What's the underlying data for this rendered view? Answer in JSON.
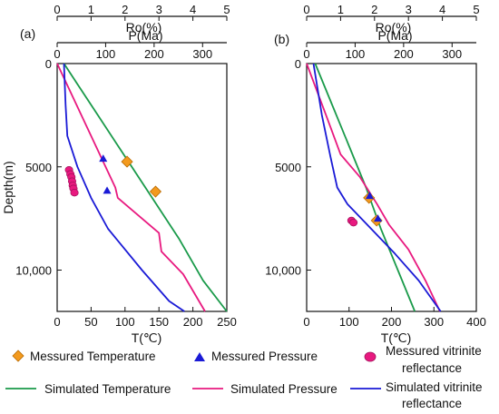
{
  "colors": {
    "temperature": "#1a9a4a",
    "pressure": "#e8197f",
    "vitrinite": "#1a1ad6",
    "meas_temp_fill": "#f39a1e",
    "meas_temp_stroke": "#b96a00",
    "meas_pressure": "#1a1ad6",
    "meas_vitrinite_fill": "#e8197f",
    "meas_vitrinite_stroke": "#a0105a"
  },
  "axes_labels": {
    "ro": "Ro(%)",
    "p": "P(Ma)",
    "t": "T(℃)",
    "depth": "Depth(m)"
  },
  "legend": {
    "measured_temperature": "Messured Temperature",
    "measured_pressure": "Messured Pressure",
    "measured_vitrinite_1": "Messured vitrinite",
    "measured_vitrinite_2": "reflectance",
    "simulated_temperature": "Simulated Temperature",
    "simulated_pressure": "Simulated Pressure",
    "simulated_vitrinite_1": "Simulated vitrinite",
    "simulated_vitrinite_2": "reflectance"
  },
  "chart_data": [
    {
      "type": "line",
      "panel": "(a)",
      "ylabel": "Depth(m)",
      "ylim": [
        0,
        12000
      ],
      "y_ticks": [
        0,
        5000,
        10000
      ],
      "y_tick_labels": [
        "0",
        "5000",
        "10,000"
      ],
      "axes": {
        "T": {
          "label": "T(℃)",
          "range": [
            0,
            250
          ],
          "ticks": [
            0,
            50,
            100,
            150,
            200,
            250
          ]
        },
        "P": {
          "label": "P(Ma)",
          "range": [
            0,
            350
          ],
          "ticks": [
            0,
            100,
            200,
            300
          ]
        },
        "Ro": {
          "label": "Ro(%)",
          "range": [
            0,
            5
          ],
          "ticks": [
            0,
            1,
            2,
            3,
            4,
            5
          ]
        }
      },
      "series": [
        {
          "name": "Simulated Temperature",
          "axis": "T",
          "points": [
            [
              10,
              0
            ],
            [
              30,
              1000
            ],
            [
              60,
              2500
            ],
            [
              100,
              4500
            ],
            [
              140,
              6500
            ],
            [
              180,
              8500
            ],
            [
              215,
              10500
            ],
            [
              250,
              12000
            ]
          ]
        },
        {
          "name": "Simulated Pressure",
          "axis": "P",
          "points": [
            [
              0,
              0
            ],
            [
              50,
              2500
            ],
            [
              100,
              5000
            ],
            [
              120,
              6000
            ],
            [
              125,
              6500
            ],
            [
              210,
              8200
            ],
            [
              215,
              9100
            ],
            [
              260,
              10200
            ],
            [
              305,
              12000
            ]
          ]
        },
        {
          "name": "Simulated vitrinite reflectance",
          "axis": "Ro",
          "points": [
            [
              0.2,
              0
            ],
            [
              0.25,
              2000
            ],
            [
              0.3,
              3500
            ],
            [
              0.6,
              5000
            ],
            [
              1.0,
              6500
            ],
            [
              1.5,
              8000
            ],
            [
              2.5,
              10000
            ],
            [
              3.3,
              11500
            ],
            [
              3.75,
              12000
            ]
          ]
        },
        {
          "name": "Messured Temperature",
          "axis": "T",
          "points": [
            [
              103,
              4750
            ],
            [
              145,
              6200
            ]
          ]
        },
        {
          "name": "Messured Pressure",
          "axis": "P",
          "points": [
            [
              95,
              4600
            ],
            [
              103,
              6150
            ]
          ]
        },
        {
          "name": "Messured vitrinite reflectance",
          "axis": "Ro",
          "points": [
            [
              0.35,
              5150
            ],
            [
              0.39,
              5350
            ],
            [
              0.42,
              5500
            ],
            [
              0.44,
              5700
            ],
            [
              0.46,
              5900
            ],
            [
              0.48,
              6050
            ],
            [
              0.51,
              6250
            ]
          ]
        }
      ]
    },
    {
      "type": "line",
      "panel": "(b)",
      "ylim": [
        0,
        12000
      ],
      "y_ticks": [
        0,
        5000,
        10000
      ],
      "y_tick_labels": [
        "0",
        "5000",
        "10,000"
      ],
      "axes": {
        "T": {
          "label": "T(℃)",
          "range": [
            0,
            400
          ],
          "ticks": [
            0,
            100,
            200,
            300,
            400
          ]
        },
        "P": {
          "label": "P(Ma)",
          "range": [
            0,
            350
          ],
          "ticks": [
            0,
            100,
            200,
            300
          ]
        },
        "Ro": {
          "label": "Ro(%)",
          "range": [
            0,
            5
          ],
          "ticks": [
            0,
            1,
            2,
            3,
            4,
            5
          ]
        }
      },
      "series": [
        {
          "name": "Simulated Temperature",
          "axis": "T",
          "points": [
            [
              20,
              0
            ],
            [
              60,
              2000
            ],
            [
              100,
              4000
            ],
            [
              140,
              6000
            ],
            [
              175,
              8000
            ],
            [
              215,
              10000
            ],
            [
              255,
              12000
            ]
          ]
        },
        {
          "name": "Simulated Pressure",
          "axis": "P",
          "points": [
            [
              0,
              0
            ],
            [
              40,
              2500
            ],
            [
              70,
              4400
            ],
            [
              110,
              5500
            ],
            [
              145,
              6800
            ],
            [
              170,
              7800
            ],
            [
              210,
              9000
            ],
            [
              245,
              10500
            ],
            [
              275,
              12000
            ]
          ]
        },
        {
          "name": "Simulated vitrinite reflectance",
          "axis": "Ro",
          "points": [
            [
              0.2,
              0
            ],
            [
              0.45,
              2500
            ],
            [
              0.7,
              4500
            ],
            [
              0.9,
              6000
            ],
            [
              1.2,
              6800
            ],
            [
              1.9,
              8000
            ],
            [
              2.6,
              9200
            ],
            [
              3.3,
              10500
            ],
            [
              3.95,
              12000
            ]
          ]
        },
        {
          "name": "Messured Temperature",
          "axis": "T",
          "points": [
            [
              147,
              6500
            ],
            [
              165,
              7600
            ]
          ]
        },
        {
          "name": "Messured Pressure",
          "axis": "P",
          "points": [
            [
              130,
              6400
            ],
            [
              147,
              7500
            ]
          ]
        },
        {
          "name": "Messured vitrinite reflectance",
          "axis": "Ro",
          "points": [
            [
              1.32,
              7600
            ],
            [
              1.38,
              7700
            ]
          ]
        }
      ]
    }
  ]
}
